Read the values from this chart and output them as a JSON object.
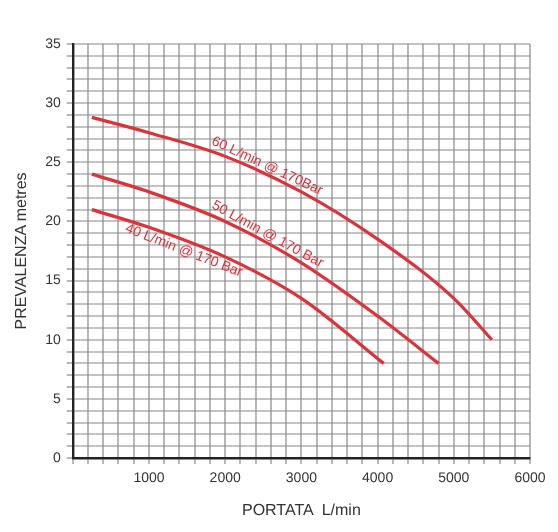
{
  "chart_data": {
    "type": "line",
    "xlabel": "PORTATA  L/min",
    "ylabel": "PREVALENZA metres",
    "grid": true,
    "legend": false,
    "marker": "none",
    "line_style": "solid",
    "xlim": [
      0,
      6000
    ],
    "ylim": [
      0,
      35
    ],
    "xticks": [
      {
        "value": 0,
        "label": null
      },
      {
        "value": 200,
        "label": null
      },
      {
        "value": 400,
        "label": null
      },
      {
        "value": 600,
        "label": null
      },
      {
        "value": 800,
        "label": null
      },
      1000,
      {
        "value": 1200,
        "label": null
      },
      {
        "value": 1400,
        "label": null
      },
      {
        "value": 1600,
        "label": null
      },
      {
        "value": 1800,
        "label": null
      },
      2000,
      {
        "value": 2200,
        "label": null
      },
      {
        "value": 2400,
        "label": null
      },
      {
        "value": 2600,
        "label": null
      },
      {
        "value": 2800,
        "label": null
      },
      3000,
      {
        "value": 3200,
        "label": null
      },
      {
        "value": 3400,
        "label": null
      },
      {
        "value": 3600,
        "label": null
      },
      {
        "value": 3800,
        "label": null
      },
      4000,
      {
        "value": 4200,
        "label": null
      },
      {
        "value": 4400,
        "label": null
      },
      {
        "value": 4600,
        "label": null
      },
      {
        "value": 4800,
        "label": null
      },
      5000,
      {
        "value": 5200,
        "label": null
      },
      {
        "value": 5400,
        "label": null
      },
      {
        "value": 5600,
        "label": null
      },
      {
        "value": 5800,
        "label": null
      },
      6000
    ],
    "yticks": [
      0,
      {
        "value": 1,
        "label": null
      },
      {
        "value": 2,
        "label": null
      },
      {
        "value": 3,
        "label": null
      },
      {
        "value": 4,
        "label": null
      },
      5,
      {
        "value": 6,
        "label": null
      },
      {
        "value": 7,
        "label": null
      },
      {
        "value": 8,
        "label": null
      },
      {
        "value": 9,
        "label": null
      },
      10,
      {
        "value": 11,
        "label": null
      },
      {
        "value": 12,
        "label": null
      },
      {
        "value": 13,
        "label": null
      },
      {
        "value": 14,
        "label": null
      },
      15,
      {
        "value": 16,
        "label": null
      },
      {
        "value": 17,
        "label": null
      },
      {
        "value": 18,
        "label": null
      },
      {
        "value": 19,
        "label": null
      },
      20,
      {
        "value": 21,
        "label": null
      },
      {
        "value": 22,
        "label": null
      },
      {
        "value": 23,
        "label": null
      },
      {
        "value": 24,
        "label": null
      },
      25,
      {
        "value": 26,
        "label": null
      },
      {
        "value": 27,
        "label": null
      },
      {
        "value": 28,
        "label": null
      },
      {
        "value": 29,
        "label": null
      },
      30,
      {
        "value": 31,
        "label": null
      },
      {
        "value": 32,
        "label": null
      },
      {
        "value": 33,
        "label": null
      },
      {
        "value": 34,
        "label": null
      },
      35
    ],
    "series": [
      {
        "name": "60 L/min @ 170Bar",
        "color": "#d8343c",
        "x": [
          250,
          1000,
          2000,
          3000,
          4000,
          5000,
          5500
        ],
        "values": [
          28.8,
          27.5,
          25.5,
          22.5,
          18.5,
          13.5,
          10
        ]
      },
      {
        "name": "50 L/min @ 170 Bar",
        "color": "#d8343c",
        "x": [
          250,
          1000,
          2000,
          3000,
          4000,
          4800
        ],
        "values": [
          24,
          22.5,
          20,
          16.5,
          12,
          8
        ]
      },
      {
        "name": "40 L/min @ 170 Bar",
        "color": "#d8343c",
        "x": [
          250,
          1000,
          2000,
          3000,
          4080
        ],
        "values": [
          21,
          19.5,
          17,
          13.5,
          8
        ]
      }
    ]
  }
}
